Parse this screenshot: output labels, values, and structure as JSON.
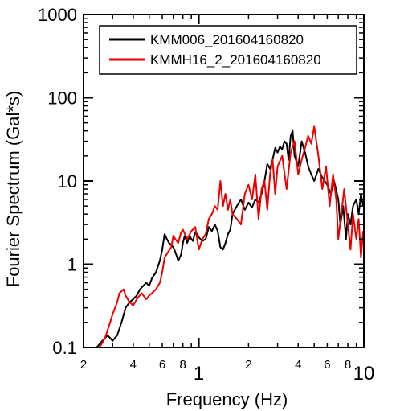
{
  "chart_data": {
    "type": "line",
    "xlabel": "Frequency (Hz)",
    "ylabel": "Fourier Spectrum (Gal*s)",
    "x_scale": "log",
    "y_scale": "log",
    "xlim": [
      0.2,
      10
    ],
    "ylim": [
      0.1,
      1000
    ],
    "x_major_ticks": [
      {
        "v": 1,
        "label": "1"
      },
      {
        "v": 10,
        "label": "10"
      }
    ],
    "x_minor_ticks": [
      {
        "v": 0.2,
        "label": "2"
      },
      {
        "v": 0.3,
        "label": ""
      },
      {
        "v": 0.4,
        "label": "4"
      },
      {
        "v": 0.5,
        "label": ""
      },
      {
        "v": 0.6,
        "label": "6"
      },
      {
        "v": 0.7,
        "label": ""
      },
      {
        "v": 0.8,
        "label": "8"
      },
      {
        "v": 0.9,
        "label": ""
      },
      {
        "v": 2,
        "label": "2"
      },
      {
        "v": 3,
        "label": ""
      },
      {
        "v": 4,
        "label": "4"
      },
      {
        "v": 5,
        "label": ""
      },
      {
        "v": 6,
        "label": "6"
      },
      {
        "v": 7,
        "label": ""
      },
      {
        "v": 8,
        "label": "8"
      },
      {
        "v": 9,
        "label": ""
      }
    ],
    "y_ticks": [
      {
        "v": 0.1,
        "label": "0.1"
      },
      {
        "v": 1,
        "label": "1"
      },
      {
        "v": 10,
        "label": "10"
      },
      {
        "v": 100,
        "label": "100"
      },
      {
        "v": 1000,
        "label": "1000"
      }
    ],
    "grid": false,
    "legend_position": "top-right",
    "series": [
      {
        "name": "KMM006_201604160820",
        "color": "#000000",
        "x": [
          0.24,
          0.26,
          0.28,
          0.29,
          0.3,
          0.32,
          0.34,
          0.36,
          0.38,
          0.4,
          0.42,
          0.44,
          0.46,
          0.48,
          0.5,
          0.52,
          0.55,
          0.58,
          0.6,
          0.62,
          0.64,
          0.66,
          0.68,
          0.7,
          0.72,
          0.75,
          0.78,
          0.8,
          0.82,
          0.85,
          0.88,
          0.9,
          0.92,
          0.95,
          0.98,
          1.0,
          1.05,
          1.1,
          1.15,
          1.2,
          1.25,
          1.3,
          1.35,
          1.4,
          1.45,
          1.5,
          1.55,
          1.6,
          1.65,
          1.7,
          1.8,
          1.9,
          2.0,
          2.1,
          2.2,
          2.3,
          2.4,
          2.5,
          2.6,
          2.7,
          2.8,
          2.9,
          3.0,
          3.1,
          3.2,
          3.3,
          3.4,
          3.5,
          3.6,
          3.7,
          3.8,
          4.0,
          4.2,
          4.4,
          4.6,
          4.8,
          5.0,
          5.3,
          5.6,
          6.0,
          6.3,
          6.6,
          7.0,
          7.2,
          7.5,
          7.8,
          8.0,
          8.3,
          8.6,
          9.0,
          9.3,
          9.6,
          9.9
        ],
        "y": [
          0.1,
          0.12,
          0.14,
          0.13,
          0.12,
          0.14,
          0.2,
          0.3,
          0.35,
          0.38,
          0.42,
          0.5,
          0.55,
          0.6,
          0.55,
          0.68,
          0.8,
          1.1,
          1.5,
          2.3,
          2.0,
          1.8,
          1.7,
          1.6,
          1.4,
          1.1,
          1.3,
          1.8,
          2.2,
          1.8,
          2.2,
          2.0,
          1.9,
          2.4,
          2.3,
          2.1,
          1.9,
          2.0,
          2.8,
          2.5,
          3.0,
          2.5,
          1.6,
          1.5,
          1.8,
          2.3,
          2.6,
          4.0,
          4.5,
          5.0,
          6.0,
          4.5,
          5.5,
          4.8,
          6.0,
          5.5,
          7.0,
          10.0,
          16.0,
          14.0,
          18.0,
          25.0,
          22.0,
          26.0,
          24.0,
          30.0,
          28.0,
          18.0,
          35.0,
          40.0,
          20.0,
          15.0,
          30.0,
          22.0,
          15.0,
          12.0,
          10.0,
          14.0,
          11.0,
          9.0,
          7.0,
          10.0,
          6.0,
          3.0,
          5.0,
          2.0,
          4.0,
          3.0,
          5.0,
          6.0,
          4.0,
          7.0,
          5.0
        ]
      },
      {
        "name": "KMMH16_2_201604160820",
        "color": "#ee0000",
        "x": [
          0.25,
          0.27,
          0.29,
          0.3,
          0.32,
          0.33,
          0.35,
          0.36,
          0.38,
          0.4,
          0.42,
          0.45,
          0.48,
          0.5,
          0.52,
          0.55,
          0.58,
          0.6,
          0.62,
          0.65,
          0.68,
          0.7,
          0.72,
          0.75,
          0.78,
          0.8,
          0.85,
          0.9,
          0.95,
          1.0,
          1.05,
          1.1,
          1.15,
          1.2,
          1.25,
          1.3,
          1.35,
          1.4,
          1.45,
          1.5,
          1.55,
          1.6,
          1.7,
          1.8,
          1.9,
          2.0,
          2.1,
          2.2,
          2.3,
          2.4,
          2.5,
          2.6,
          2.7,
          2.8,
          2.9,
          3.0,
          3.2,
          3.4,
          3.6,
          3.8,
          4.0,
          4.2,
          4.4,
          4.6,
          4.8,
          5.0,
          5.3,
          5.6,
          5.9,
          6.2,
          6.5,
          6.8,
          7.0,
          7.3,
          7.6,
          8.0,
          8.3,
          8.6,
          9.0,
          9.3,
          9.6,
          9.9
        ],
        "y": [
          0.1,
          0.13,
          0.2,
          0.25,
          0.35,
          0.45,
          0.5,
          0.42,
          0.35,
          0.32,
          0.38,
          0.45,
          0.38,
          0.42,
          0.45,
          0.5,
          0.6,
          0.8,
          1.2,
          1.4,
          1.6,
          2.2,
          2.0,
          1.8,
          2.4,
          2.6,
          2.0,
          2.5,
          2.8,
          1.5,
          2.0,
          2.3,
          3.5,
          4.0,
          5.0,
          4.5,
          10.0,
          5.0,
          7.0,
          4.5,
          6.0,
          4.0,
          3.5,
          3.0,
          7.0,
          9.0,
          6.0,
          12.0,
          3.5,
          8.0,
          10.0,
          4.5,
          12.0,
          18.0,
          7.0,
          15.0,
          20.0,
          8.0,
          22.0,
          30.0,
          12.0,
          18.0,
          25.0,
          35.0,
          28.0,
          45.0,
          20.0,
          8.0,
          15.0,
          5.0,
          12.0,
          6.0,
          2.0,
          4.0,
          8.0,
          3.0,
          1.5,
          4.0,
          2.0,
          3.5,
          1.2,
          2.5
        ]
      }
    ]
  }
}
